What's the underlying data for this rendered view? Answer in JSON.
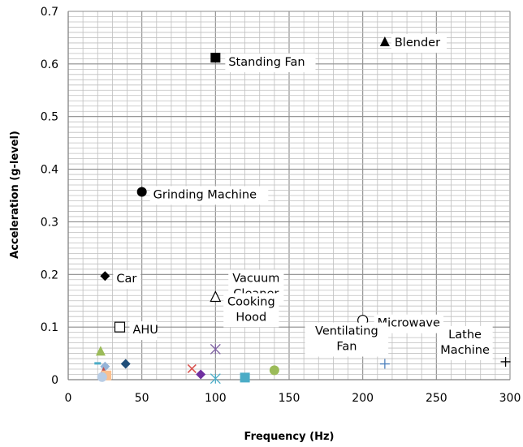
{
  "chart_data": {
    "type": "scatter",
    "title": "",
    "xlabel": "Frequency (Hz)",
    "ylabel": "Acceleration (g-level)",
    "xlim": [
      0,
      300
    ],
    "ylim": [
      0,
      0.7
    ],
    "x_ticks": [
      "0",
      "50",
      "100",
      "150",
      "200",
      "250",
      "300"
    ],
    "y_ticks": [
      "0",
      "0.1",
      "0.2",
      "0.3",
      "0.4",
      "0.5",
      "0.6",
      "0.7"
    ],
    "grid": true,
    "legend": "none",
    "points": [
      {
        "name": "Blender",
        "x": 215,
        "y": 0.643,
        "marker": "triangle",
        "color": "#000000"
      },
      {
        "name": "Standing Fan",
        "x": 100,
        "y": 0.612,
        "marker": "square",
        "color": "#000000"
      },
      {
        "name": "Grinding Machine",
        "x": 50,
        "y": 0.357,
        "marker": "circle",
        "color": "#000000"
      },
      {
        "name": "Car",
        "x": 25,
        "y": 0.197,
        "marker": "diamond",
        "color": "#000000"
      },
      {
        "name": "Vacuum Cleaner",
        "x": 100,
        "y": 0.158,
        "marker": "triangle-open",
        "color": "#000000"
      },
      {
        "name": "Microwave",
        "x": 200,
        "y": 0.113,
        "marker": "circle-open",
        "color": "#000000"
      },
      {
        "name": "AHU",
        "x": 35,
        "y": 0.1,
        "marker": "square-open",
        "color": "#000000"
      },
      {
        "name": "Cooking Hood",
        "x": 100,
        "y": 0.058,
        "marker": "asterisk",
        "color": "#8064a2"
      },
      {
        "name": "Ventilating Fan",
        "x": 215,
        "y": 0.03,
        "marker": "plus",
        "color": "#4f81bd"
      },
      {
        "name": "Lathe Machine",
        "x": 297,
        "y": 0.034,
        "marker": "plus",
        "color": "#000000"
      }
    ],
    "unlabeled_points": [
      {
        "x": 22,
        "y": 0.055,
        "marker": "triangle",
        "color": "#9bbb59"
      },
      {
        "x": 20,
        "y": 0.031,
        "marker": "dash",
        "color": "#4bacc6"
      },
      {
        "x": 25,
        "y": 0.025,
        "marker": "diamond",
        "color": "#95b3d7"
      },
      {
        "x": 24,
        "y": 0.015,
        "marker": "triangle",
        "color": "#c0504d"
      },
      {
        "x": 26,
        "y": 0.008,
        "marker": "square",
        "color": "#fac090"
      },
      {
        "x": 23,
        "y": 0.005,
        "marker": "circle",
        "color": "#b9cde5"
      },
      {
        "x": 39,
        "y": 0.03,
        "marker": "diamond",
        "color": "#1f4e79"
      },
      {
        "x": 84,
        "y": 0.021,
        "marker": "cross",
        "color": "#d9534f"
      },
      {
        "x": 90,
        "y": 0.01,
        "marker": "diamond",
        "color": "#7030a0"
      },
      {
        "x": 100,
        "y": 0.002,
        "marker": "asterisk",
        "color": "#4bacc6"
      },
      {
        "x": 120,
        "y": 0.004,
        "marker": "square",
        "color": "#4bacc6"
      },
      {
        "x": 140,
        "y": 0.018,
        "marker": "circle",
        "color": "#9bbb59"
      }
    ]
  }
}
